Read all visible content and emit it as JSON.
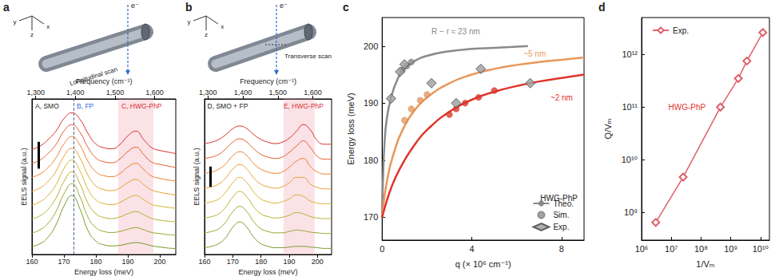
{
  "chart_data": [
    {
      "panel": "a",
      "type": "line",
      "schematic": {
        "axes": [
          "y",
          "z",
          "x"
        ],
        "beam": "e⁻",
        "scan": "Longitudinal scan"
      },
      "x_label": "Energy loss (meV)",
      "x2_label": "Frequency (cm⁻¹)",
      "y_label": "EELS signal (a.u.)",
      "x": [
        160,
        162.5,
        165,
        167.5,
        170,
        172.5,
        175,
        177.5,
        180,
        182.5,
        185,
        187.5,
        190,
        192.5,
        195,
        197.5,
        200,
        202.5,
        205
      ],
      "xlim": [
        160,
        205
      ],
      "xticks": [
        160,
        170,
        180,
        190,
        200
      ],
      "x2lim": [
        1290.5,
        1653.4
      ],
      "x2ticks": [
        {
          "value": 1300,
          "label": "1,300"
        },
        {
          "value": 1400,
          "label": "1,400"
        },
        {
          "value": 1500,
          "label": "1,500"
        },
        {
          "value": 1600,
          "label": "1,600"
        }
      ],
      "ylim": [
        0,
        2.9
      ],
      "tick_labels": "x",
      "grid": false,
      "highlight_range": [
        187,
        198
      ],
      "reference_line": 173,
      "scale_bar": {
        "x": 162,
        "y": [
          1.6,
          2.1
        ]
      },
      "annotations": [
        {
          "text": "A, SMO",
          "x": 161,
          "color": "#222222"
        },
        {
          "text": "B, FP",
          "x": 174,
          "color": "#2a6fd6"
        },
        {
          "text": "C, HWG-PhP",
          "x": 188,
          "color": "#d8312f"
        }
      ],
      "series": [
        {
          "color": "#7a9a2a",
          "values": [
            0.15,
            0.2,
            0.32,
            0.55,
            0.9,
            1.1,
            0.85,
            0.45,
            0.25,
            0.18,
            0.16,
            0.17,
            0.2,
            0.22,
            0.2,
            0.16,
            0.14,
            0.12,
            0.11
          ]
        },
        {
          "color": "#98a72e",
          "values": [
            0.4,
            0.46,
            0.58,
            0.8,
            1.13,
            1.32,
            1.08,
            0.7,
            0.5,
            0.43,
            0.41,
            0.43,
            0.47,
            0.5,
            0.46,
            0.41,
            0.39,
            0.37,
            0.36
          ]
        },
        {
          "color": "#b8b030",
          "values": [
            0.66,
            0.72,
            0.84,
            1.05,
            1.36,
            1.54,
            1.32,
            0.96,
            0.76,
            0.69,
            0.67,
            0.7,
            0.76,
            0.8,
            0.74,
            0.67,
            0.64,
            0.62,
            0.61
          ]
        },
        {
          "color": "#d6b22f",
          "values": [
            0.92,
            0.98,
            1.1,
            1.3,
            1.6,
            1.76,
            1.56,
            1.22,
            1.02,
            0.95,
            0.93,
            0.97,
            1.05,
            1.1,
            1.02,
            0.93,
            0.9,
            0.88,
            0.86
          ]
        },
        {
          "color": "#e8a02c",
          "values": [
            1.18,
            1.24,
            1.36,
            1.55,
            1.83,
            1.98,
            1.8,
            1.48,
            1.28,
            1.21,
            1.19,
            1.24,
            1.34,
            1.4,
            1.3,
            1.2,
            1.16,
            1.13,
            1.11
          ]
        },
        {
          "color": "#ee812a",
          "values": [
            1.44,
            1.5,
            1.62,
            1.8,
            2.06,
            2.2,
            2.04,
            1.74,
            1.54,
            1.47,
            1.45,
            1.51,
            1.63,
            1.7,
            1.58,
            1.46,
            1.42,
            1.39,
            1.37
          ]
        },
        {
          "color": "#e65c2a",
          "values": [
            1.7,
            1.76,
            1.88,
            2.05,
            2.3,
            2.42,
            2.28,
            2.0,
            1.8,
            1.73,
            1.71,
            1.78,
            1.92,
            2.0,
            1.86,
            1.72,
            1.68,
            1.65,
            1.62
          ]
        },
        {
          "color": "#d7302a",
          "values": [
            1.96,
            2.02,
            2.14,
            2.3,
            2.53,
            2.64,
            2.52,
            2.26,
            2.06,
            1.99,
            1.97,
            2.05,
            2.21,
            2.3,
            2.14,
            1.99,
            1.94,
            1.91,
            1.88
          ]
        }
      ]
    },
    {
      "panel": "b",
      "type": "line",
      "schematic": {
        "axes": [
          "y",
          "z",
          "x"
        ],
        "beam": "e⁻",
        "scan": "Transverse scan"
      },
      "x_label": "Energy loss (meV)",
      "x2_label": "Frequency (cm⁻¹)",
      "y_label": "EELS signal (a.u.)",
      "x": [
        160,
        162.5,
        165,
        167.5,
        170,
        172.5,
        175,
        177.5,
        180,
        182.5,
        185,
        187.5,
        190,
        192.5,
        195,
        197.5,
        200,
        202.5,
        205
      ],
      "xlim": [
        160,
        205
      ],
      "xticks": [
        160,
        170,
        180,
        190,
        200
      ],
      "x2lim": [
        1290.5,
        1653.4
      ],
      "x2ticks": [
        {
          "value": 1300,
          "label": "1,300"
        },
        {
          "value": 1400,
          "label": "1,400"
        },
        {
          "value": 1500,
          "label": "1,500"
        },
        {
          "value": 1600,
          "label": "1,600"
        }
      ],
      "ylim": [
        0,
        2.3
      ],
      "tick_labels": "x",
      "grid": false,
      "highlight_range": [
        188,
        199
      ],
      "scale_bar": {
        "x": 162,
        "y": [
          1.0,
          1.3
        ]
      },
      "annotations": [
        {
          "text": "D, SMO + FP",
          "x": 161,
          "color": "#222222"
        },
        {
          "text": "E, HWG-PhP",
          "x": 188,
          "color": "#d8312f"
        }
      ],
      "series": [
        {
          "color": "#7a9a2a",
          "values": [
            0.1,
            0.12,
            0.16,
            0.25,
            0.4,
            0.48,
            0.4,
            0.25,
            0.16,
            0.12,
            0.1,
            0.1,
            0.11,
            0.12,
            0.12,
            0.11,
            0.1,
            0.09,
            0.09
          ]
        },
        {
          "color": "#98a72e",
          "values": [
            0.32,
            0.34,
            0.38,
            0.48,
            0.63,
            0.71,
            0.63,
            0.48,
            0.38,
            0.34,
            0.32,
            0.32,
            0.34,
            0.36,
            0.35,
            0.33,
            0.32,
            0.31,
            0.31
          ]
        },
        {
          "color": "#b8b030",
          "values": [
            0.54,
            0.56,
            0.6,
            0.7,
            0.85,
            0.93,
            0.85,
            0.7,
            0.6,
            0.56,
            0.54,
            0.55,
            0.58,
            0.62,
            0.6,
            0.56,
            0.54,
            0.53,
            0.53
          ]
        },
        {
          "color": "#d6b22f",
          "values": [
            0.76,
            0.78,
            0.82,
            0.92,
            1.06,
            1.14,
            1.06,
            0.92,
            0.82,
            0.78,
            0.76,
            0.78,
            0.82,
            0.88,
            0.86,
            0.79,
            0.76,
            0.75,
            0.75
          ]
        },
        {
          "color": "#e8a02c",
          "values": [
            0.98,
            1.0,
            1.04,
            1.13,
            1.26,
            1.33,
            1.26,
            1.13,
            1.04,
            1.0,
            0.98,
            1.0,
            1.06,
            1.14,
            1.14,
            1.04,
            0.99,
            0.97,
            0.97
          ]
        },
        {
          "color": "#ee812a",
          "values": [
            1.2,
            1.22,
            1.26,
            1.34,
            1.46,
            1.52,
            1.46,
            1.34,
            1.26,
            1.22,
            1.2,
            1.22,
            1.29,
            1.38,
            1.42,
            1.3,
            1.22,
            1.19,
            1.19
          ]
        },
        {
          "color": "#e65c2a",
          "values": [
            1.42,
            1.44,
            1.48,
            1.56,
            1.66,
            1.71,
            1.66,
            1.56,
            1.48,
            1.44,
            1.42,
            1.44,
            1.51,
            1.6,
            1.68,
            1.58,
            1.45,
            1.41,
            1.41
          ]
        },
        {
          "color": "#d7302a",
          "values": [
            1.64,
            1.66,
            1.7,
            1.77,
            1.86,
            1.9,
            1.86,
            1.77,
            1.7,
            1.66,
            1.64,
            1.66,
            1.72,
            1.82,
            1.92,
            1.84,
            1.68,
            1.63,
            1.63
          ]
        }
      ]
    },
    {
      "panel": "c",
      "type": "line",
      "x_label": "q (× 10⁶ cm⁻¹)",
      "y_label": "Energy loss (meV)",
      "xlim": [
        0,
        9
      ],
      "xticks": [
        0,
        4,
        8
      ],
      "ylim": [
        166,
        205
      ],
      "yticks": [
        170,
        180,
        190,
        200
      ],
      "grid": false,
      "legend": "lower right",
      "legend_title": "HWG-PhP",
      "series": [
        {
          "name": "Theo.",
          "type": "line",
          "color": "#8a8a8a",
          "x": [
            0,
            0.05,
            0.1,
            0.2,
            0.4,
            0.7,
            1,
            1.5,
            2,
            3,
            4,
            5,
            6,
            6.5
          ],
          "values": [
            170,
            178,
            182.5,
            187,
            191,
            194.3,
            196,
            197.5,
            198.3,
            199.1,
            199.5,
            199.7,
            199.9,
            200
          ]
        },
        {
          "name": "Theo.",
          "type": "line",
          "color": "#e8975a",
          "x": [
            0,
            0.2,
            0.5,
            1,
            1.5,
            2,
            3,
            4,
            5,
            6,
            7,
            8,
            9
          ],
          "values": [
            170,
            176,
            181,
            186,
            189,
            191,
            193.5,
            195,
            196,
            196.7,
            197.2,
            197.6,
            198
          ]
        },
        {
          "name": "Theo.",
          "type": "line",
          "color": "#e0352b",
          "x": [
            0,
            0.3,
            0.6,
            1,
            1.5,
            2,
            3,
            4,
            5,
            6,
            7,
            8,
            9
          ],
          "values": [
            170,
            174,
            177,
            180,
            183,
            185.3,
            188.5,
            190.6,
            192,
            193,
            193.8,
            194.4,
            195
          ]
        },
        {
          "name": "Sim.",
          "type": "scatter",
          "marker": "circle",
          "color": "#8a8a8a",
          "x": [
            0.9,
            1.1,
            1.3
          ],
          "values": [
            195.8,
            196.5,
            197.2
          ]
        },
        {
          "name": "Sim.",
          "type": "scatter",
          "marker": "circle",
          "color": "#e8975a",
          "x": [
            1.0,
            1.3,
            1.7,
            2.0
          ],
          "values": [
            187,
            189,
            190.5,
            191.5
          ]
        },
        {
          "name": "Sim.",
          "type": "scatter",
          "marker": "circle",
          "color": "#e0352b",
          "x": [
            3.0,
            3.3,
            3.7,
            4.3,
            5.0
          ],
          "values": [
            188,
            189,
            190,
            191,
            192.2
          ]
        },
        {
          "name": "Exp.",
          "type": "scatter",
          "marker": "diamond",
          "color": "#9e9e9e",
          "x": [
            0.4,
            0.8,
            1.0,
            2.2,
            4.4,
            3.3,
            6.6
          ],
          "values": [
            190.8,
            195.5,
            196.8,
            193.5,
            196,
            190,
            193.5
          ]
        }
      ],
      "annotations": [
        {
          "text": "R − r ≈ 23 nm",
          "x": 2.2,
          "y": 202.5,
          "color": "#8a8a8a"
        },
        {
          "text": "~5 nm",
          "x": 6.3,
          "y": 198.6,
          "color": "#e8975a"
        },
        {
          "text": "~2 nm",
          "x": 7.5,
          "y": 191,
          "color": "#e0352b"
        }
      ]
    },
    {
      "panel": "d",
      "type": "line",
      "log": true,
      "x_label": "1/Vₘ",
      "y_label": "Q/Vₘ",
      "xlim": [
        1000000.0,
        20000000000.0
      ],
      "xticks": [
        {
          "value": 1000000,
          "label": "10⁶"
        },
        {
          "value": 10000000,
          "label": "10⁷"
        },
        {
          "value": 100000000,
          "label": "10⁸"
        },
        {
          "value": 1000000000,
          "label": "10⁹"
        },
        {
          "value": 10000000000,
          "label": "10¹⁰"
        }
      ],
      "ylim": [
        300000000.0,
        5000000000000.0
      ],
      "yticks": [
        {
          "value": 1000000000,
          "label": "10⁹"
        },
        {
          "value": 10000000000,
          "label": "10¹⁰"
        },
        {
          "value": 100000000000,
          "label": "10¹¹"
        },
        {
          "value": 1000000000000,
          "label": "10¹²"
        }
      ],
      "grid": false,
      "legend": "upper left",
      "series": [
        {
          "name": "Exp.",
          "color": "#e0606a",
          "marker": "open_diamond",
          "x": [
            3000000.0,
            25000000.0,
            450000000.0,
            1800000000.0,
            3500000000.0,
            12000000000.0
          ],
          "values": [
            650000000.0,
            4700000000.0,
            100000000000.0,
            350000000000.0,
            750000000000.0,
            2600000000000.0
          ]
        }
      ],
      "annotations": [
        {
          "text": "HWG-PhP",
          "x": 8000000.0,
          "y": 100000000000.0,
          "color": "#e0352b"
        }
      ]
    }
  ]
}
